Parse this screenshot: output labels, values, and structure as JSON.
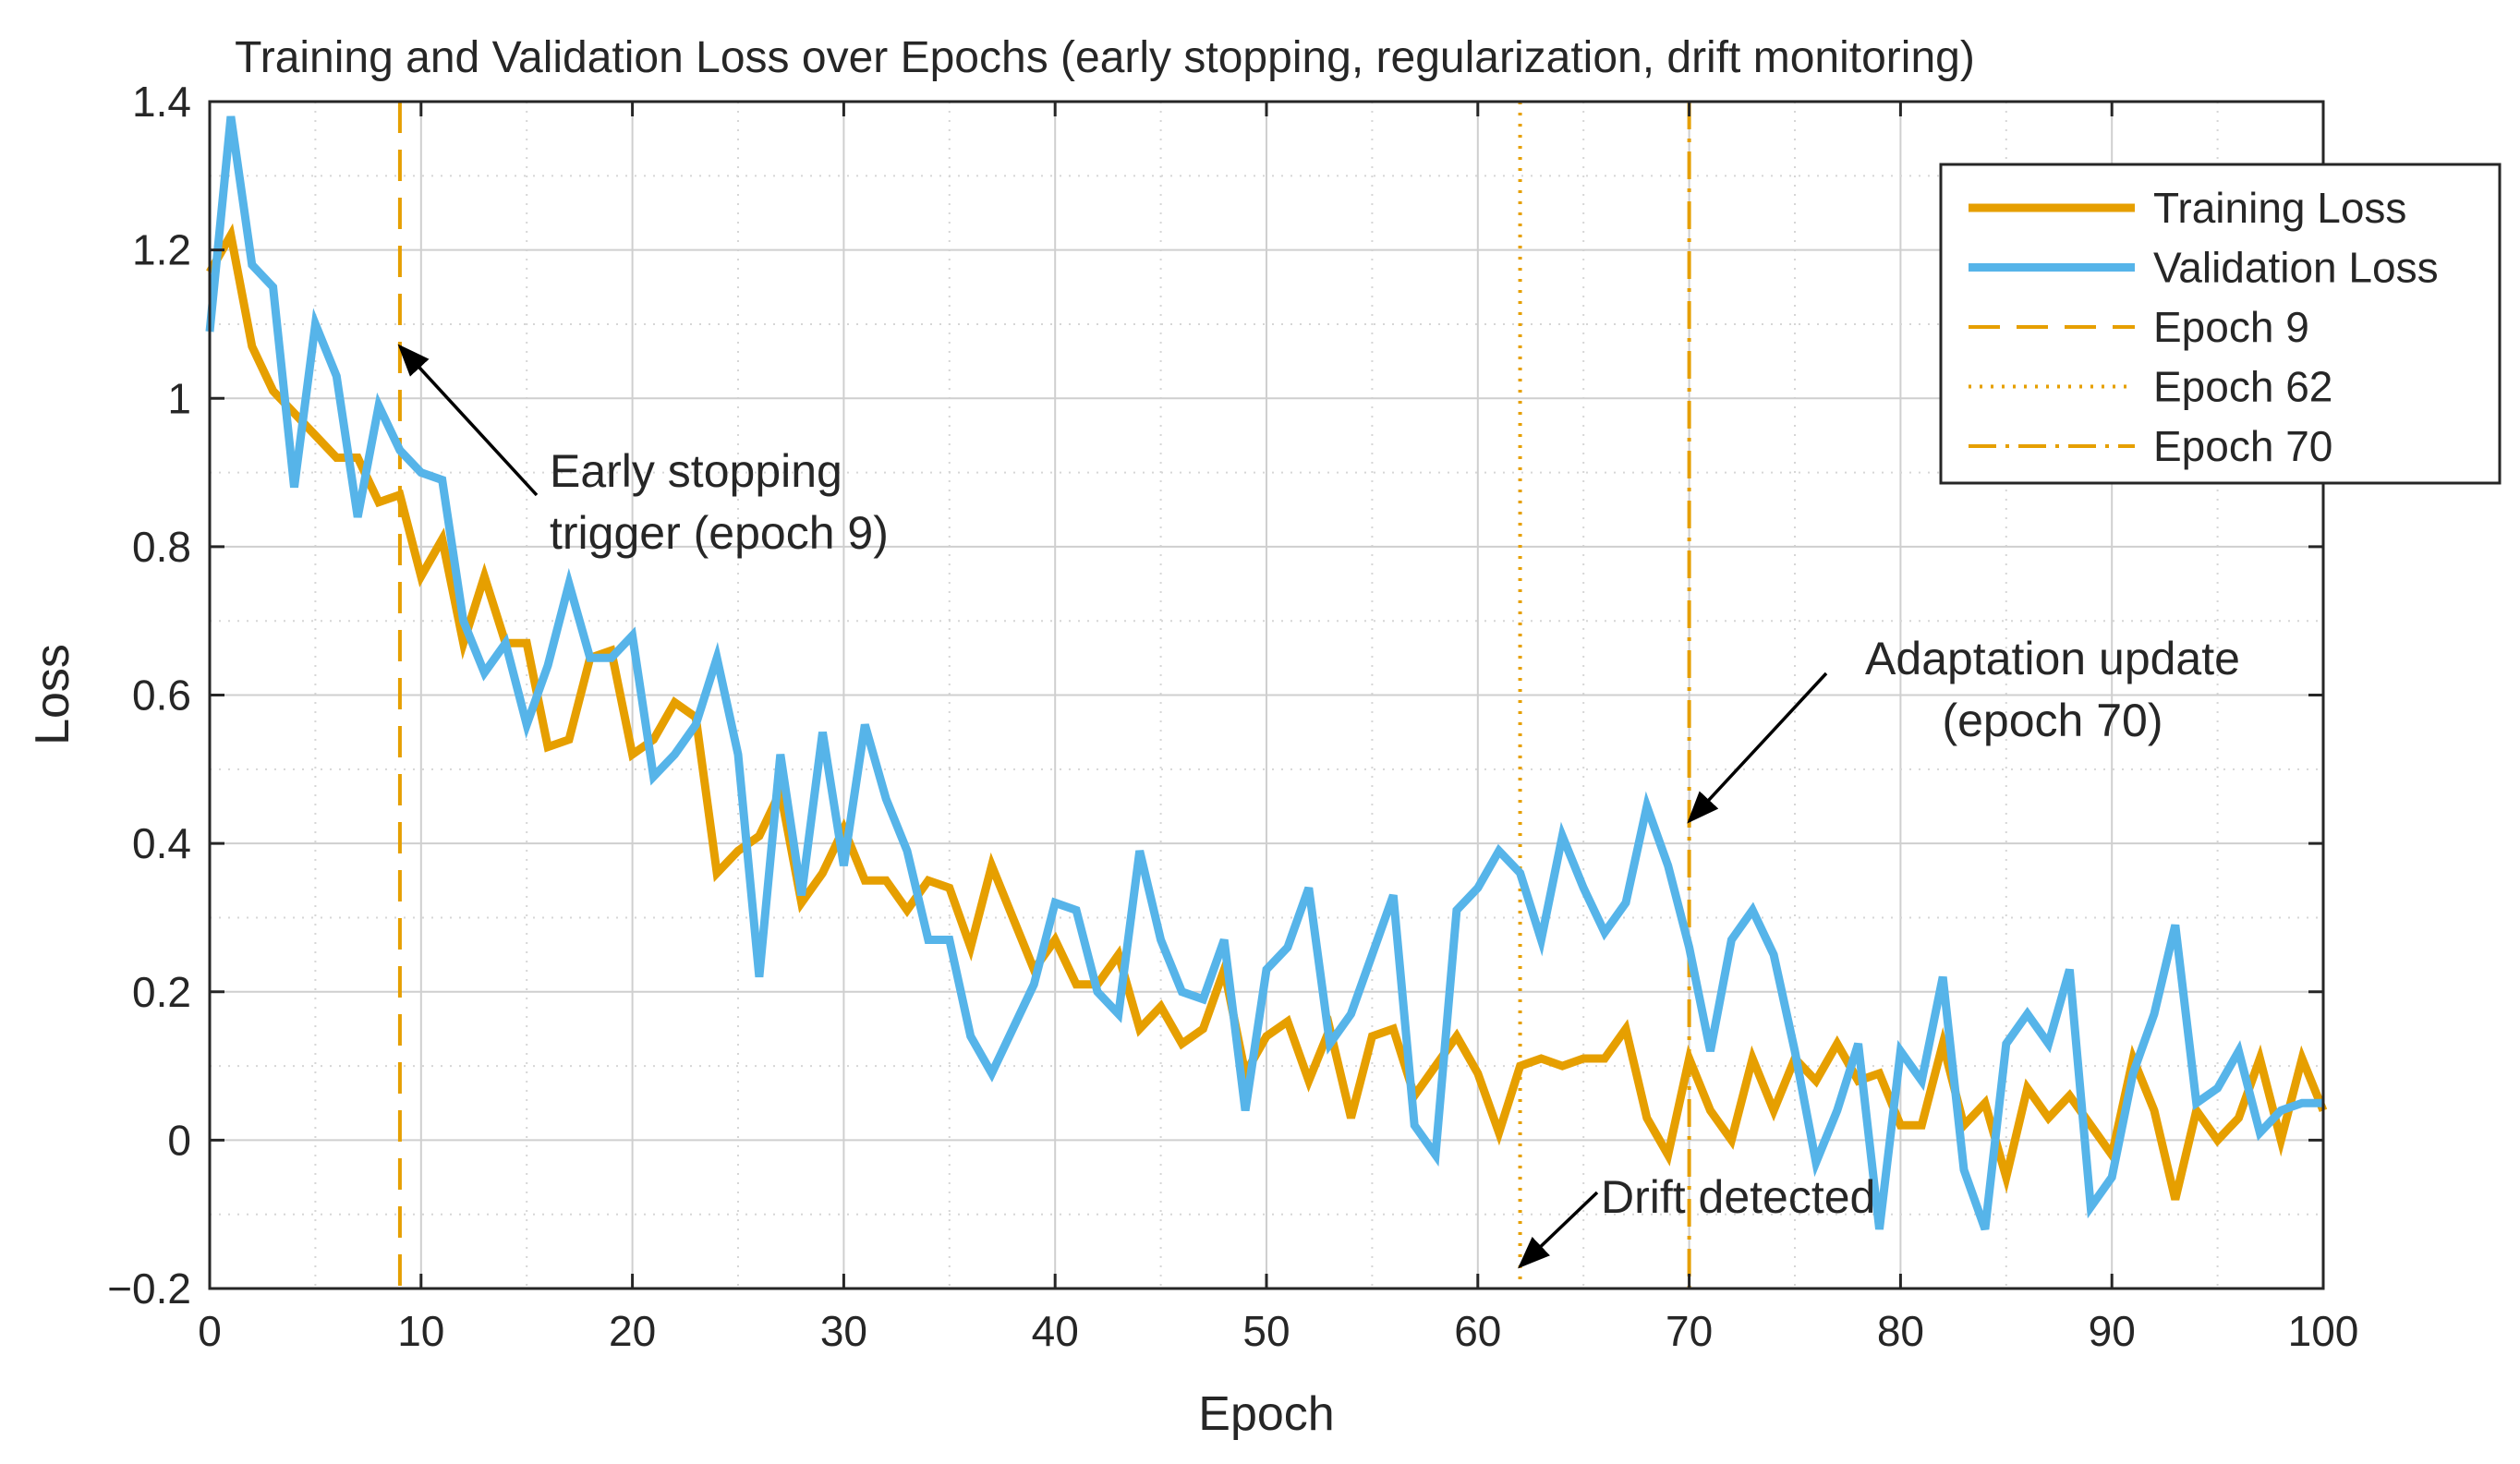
{
  "chart_data": {
    "type": "line",
    "title": "Training and Validation Loss over Epochs (early stopping, regularization, drift monitoring)",
    "xlabel": "Epoch",
    "ylabel": "Loss",
    "xlim": [
      0,
      100
    ],
    "ylim": [
      -0.2,
      1.4
    ],
    "xticks": [
      0,
      10,
      20,
      30,
      40,
      50,
      60,
      70,
      80,
      90,
      100
    ],
    "xtick_labels": [
      "0",
      "10",
      "20",
      "30",
      "40",
      "50",
      "60",
      "70",
      "80",
      "90",
      "100"
    ],
    "yticks": [
      -0.2,
      0,
      0.2,
      0.4,
      0.6,
      0.8,
      1,
      1.2,
      1.4
    ],
    "ytick_labels": [
      "−0.2",
      "0",
      "0.2",
      "0.4",
      "0.6",
      "0.8",
      "1",
      "1.2",
      "1.4"
    ],
    "grid": true,
    "minor_grid": true,
    "legend_position": "top-right",
    "series": [
      {
        "name": "Training Loss",
        "color": "#E69F00",
        "values": [
          1.17,
          1.22,
          1.07,
          1.01,
          0.98,
          0.95,
          0.92,
          0.92,
          0.86,
          0.87,
          0.76,
          0.81,
          0.67,
          0.76,
          0.67,
          0.67,
          0.53,
          0.54,
          0.65,
          0.66,
          0.52,
          0.54,
          0.59,
          0.57,
          0.36,
          0.39,
          0.41,
          0.47,
          0.32,
          0.36,
          0.42,
          0.35,
          0.35,
          0.31,
          0.35,
          0.34,
          0.26,
          0.37,
          0.3,
          0.23,
          0.27,
          0.21,
          0.21,
          0.25,
          0.15,
          0.18,
          0.13,
          0.15,
          0.23,
          0.09,
          0.14,
          0.16,
          0.08,
          0.15,
          0.03,
          0.14,
          0.15,
          0.06,
          0.1,
          0.14,
          0.09,
          0.01,
          0.1,
          0.11,
          0.1,
          0.11,
          0.11,
          0.15,
          0.03,
          -0.02,
          0.11,
          0.04,
          0.0,
          0.11,
          0.04,
          0.11,
          0.08,
          0.13,
          0.08,
          0.09,
          0.02,
          0.02,
          0.13,
          0.02,
          0.05,
          -0.05,
          0.07,
          0.03,
          0.06,
          0.02,
          -0.02,
          0.11,
          0.04,
          -0.08,
          0.04,
          0.0,
          0.03,
          0.11,
          0.0,
          0.11,
          0.04
        ]
      },
      {
        "name": "Validation Loss",
        "color": "#56B4E9",
        "values": [
          1.09,
          1.38,
          1.18,
          1.15,
          0.88,
          1.1,
          1.03,
          0.84,
          0.99,
          0.93,
          0.9,
          0.89,
          0.7,
          0.63,
          0.67,
          0.56,
          0.64,
          0.75,
          0.65,
          0.65,
          0.68,
          0.49,
          0.52,
          0.56,
          0.65,
          0.52,
          0.22,
          0.52,
          0.33,
          0.55,
          0.37,
          0.56,
          0.46,
          0.39,
          0.27,
          0.27,
          0.14,
          0.09,
          0.15,
          0.21,
          0.32,
          0.31,
          0.2,
          0.17,
          0.39,
          0.27,
          0.2,
          0.19,
          0.27,
          0.04,
          0.23,
          0.26,
          0.34,
          0.13,
          0.17,
          0.25,
          0.33,
          0.02,
          -0.02,
          0.31,
          0.34,
          0.39,
          0.36,
          0.27,
          0.41,
          0.34,
          0.28,
          0.32,
          0.45,
          0.37,
          0.26,
          0.12,
          0.27,
          0.31,
          0.25,
          0.12,
          -0.03,
          0.04,
          0.13,
          -0.12,
          0.12,
          0.08,
          0.22,
          -0.04,
          -0.12,
          0.13,
          0.17,
          0.13,
          0.23,
          -0.09,
          -0.05,
          0.09,
          0.17,
          0.29,
          0.05,
          0.07,
          0.12,
          0.01,
          0.04,
          0.05,
          0.05
        ]
      }
    ],
    "vlines": [
      {
        "label": "Epoch 9",
        "x": 9,
        "style": "dashed",
        "color": "#E69F00"
      },
      {
        "label": "Epoch 62",
        "x": 62,
        "style": "dotted",
        "color": "#E69F00"
      },
      {
        "label": "Epoch 70",
        "x": 70,
        "style": "dashdot",
        "color": "#E69F00"
      }
    ],
    "annotations": [
      {
        "id": "early-stopping",
        "lines": [
          "Early stopping",
          "trigger (epoch 9)"
        ],
        "arrow_to_x": 9,
        "arrow_to_y": 1.07
      },
      {
        "id": "adaptation",
        "lines": [
          "Adaptation update",
          "(epoch 70)"
        ],
        "arrow_to_x": 70,
        "arrow_to_y": 0.43
      },
      {
        "id": "drift",
        "lines": [
          "Drift detected"
        ],
        "arrow_to_x": 62,
        "arrow_to_y": -0.17
      }
    ]
  }
}
